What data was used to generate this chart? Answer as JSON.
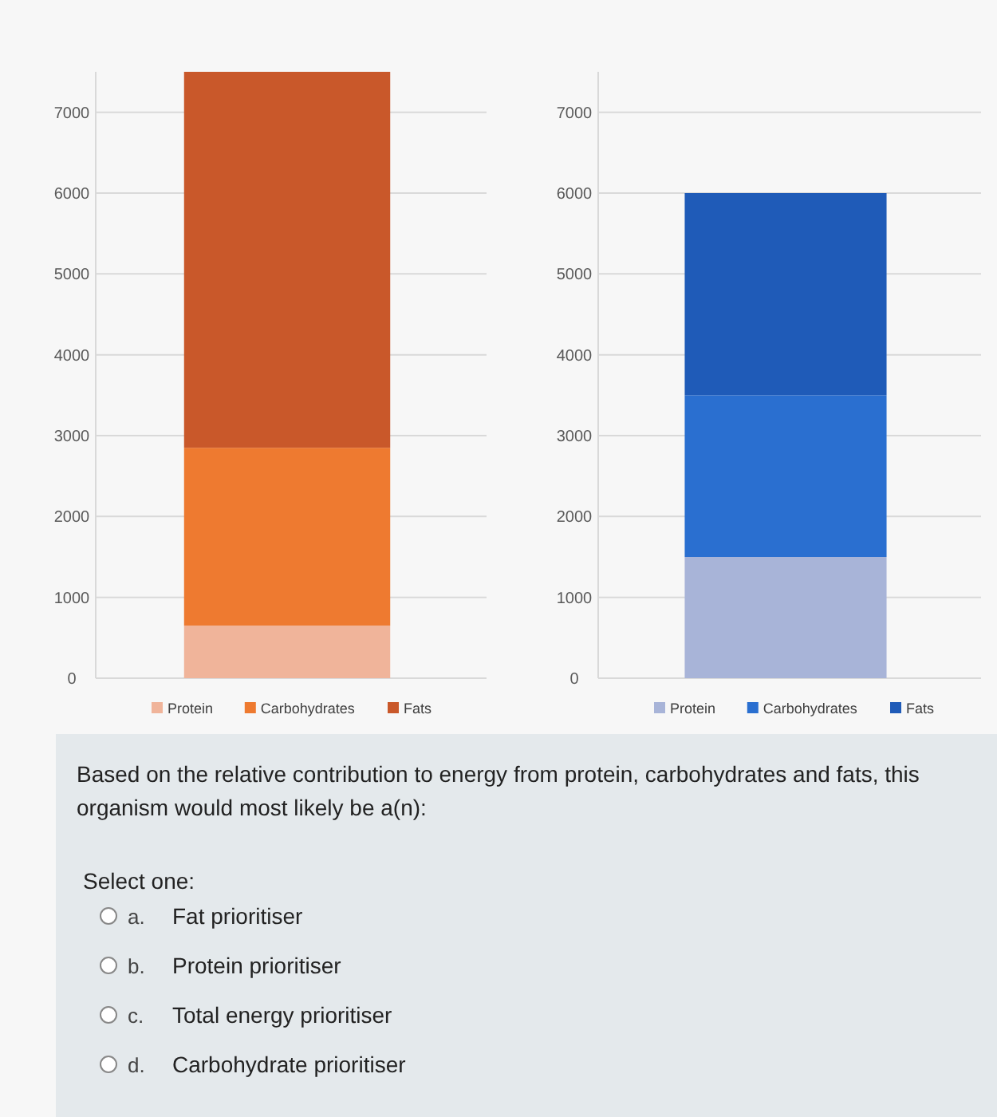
{
  "chart_data": [
    {
      "type": "bar",
      "stacked": true,
      "categories": [
        null
      ],
      "series": [
        {
          "name": "Protein",
          "color": "#f0b49a",
          "values": [
            650
          ]
        },
        {
          "name": "Carbohydrates",
          "color": "#ee7a30",
          "values": [
            2200
          ]
        },
        {
          "name": "Fats",
          "color": "#c9582a",
          "values": [
            4650
          ]
        }
      ],
      "ylim": [
        0,
        7500
      ],
      "yticks": [
        0,
        1000,
        2000,
        3000,
        4000,
        5000,
        6000,
        7000
      ],
      "grid": "y",
      "legend": "bottom"
    },
    {
      "type": "bar",
      "stacked": true,
      "categories": [
        null
      ],
      "series": [
        {
          "name": "Protein",
          "color": "#a8b4d8",
          "values": [
            1500
          ]
        },
        {
          "name": "Carbohydrates",
          "color": "#2a6fd0",
          "values": [
            2000
          ]
        },
        {
          "name": "Fats",
          "color": "#1f5bb8",
          "values": [
            2500
          ]
        }
      ],
      "ylim": [
        0,
        7500
      ],
      "yticks": [
        0,
        1000,
        2000,
        3000,
        4000,
        5000,
        6000,
        7000
      ],
      "grid": "y",
      "legend": "bottom"
    },
    {
      "type": "other",
      "annotations": [
        "Based on the relative contribution to energy from protein, carbohydrates and fats, this organism would most likely be a(n):",
        "Select one:",
        "a.",
        "Fat prioritiser",
        "b.",
        "Protein prioritiser",
        "c.",
        "Total energy prioritiser",
        "d.",
        "Carbohydrate prioritiser"
      ]
    }
  ]
}
